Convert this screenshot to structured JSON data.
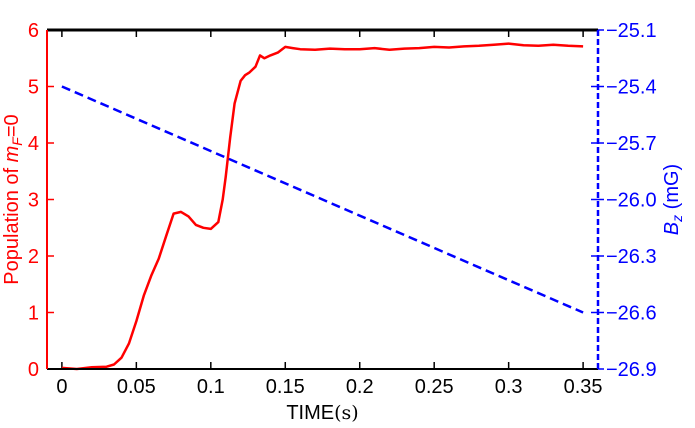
{
  "chart_data": {
    "type": "line",
    "x_axis": {
      "label_main": "TIME",
      "label_unit": "(s)",
      "range": [
        -0.01,
        0.36
      ],
      "ticks": [
        0,
        0.05,
        0.1,
        0.15,
        0.2,
        0.25,
        0.3,
        0.35
      ],
      "tick_labels": [
        "0",
        "0.05",
        "0.1",
        "0.15",
        "0.2",
        "0.25",
        "0.3",
        "0.35"
      ]
    },
    "y_left": {
      "label_prefix": "Population of ",
      "label_var": "m",
      "label_sub": "F",
      "label_suffix": "=0",
      "range": [
        0,
        6
      ],
      "ticks": [
        0,
        1,
        2,
        3,
        4,
        5,
        6
      ],
      "tick_labels": [
        "0",
        "1",
        "2",
        "3",
        "4",
        "5",
        "6"
      ],
      "color": "#ff0000"
    },
    "y_right": {
      "label_var": "B",
      "label_sub": "z",
      "label_unit": " (mG)",
      "range": [
        -26.9,
        -25.1
      ],
      "ticks": [
        -25.1,
        -25.4,
        -25.7,
        -26.0,
        -26.3,
        -26.6,
        -26.9
      ],
      "tick_labels": [
        "−25.1",
        "−25.4",
        "−25.7",
        "−26.0",
        "−26.3",
        "−26.6",
        "−26.9"
      ],
      "color": "#0000ff"
    },
    "series": [
      {
        "axis": "left",
        "style": "solid",
        "color": "#ff0000",
        "x": [
          0,
          0.01,
          0.02,
          0.03,
          0.035,
          0.04,
          0.045,
          0.05,
          0.055,
          0.06,
          0.065,
          0.07,
          0.075,
          0.08,
          0.085,
          0.09,
          0.095,
          0.1,
          0.105,
          0.108,
          0.11,
          0.113,
          0.116,
          0.12,
          0.123,
          0.126,
          0.13,
          0.133,
          0.136,
          0.14,
          0.145,
          0.15,
          0.155,
          0.16,
          0.17,
          0.18,
          0.19,
          0.2,
          0.21,
          0.22,
          0.23,
          0.24,
          0.25,
          0.26,
          0.27,
          0.28,
          0.29,
          0.3,
          0.31,
          0.32,
          0.33,
          0.34,
          0.35
        ],
        "y": [
          0.02,
          0.0,
          0.03,
          0.04,
          0.08,
          0.2,
          0.45,
          0.85,
          1.3,
          1.65,
          1.95,
          2.35,
          2.75,
          2.78,
          2.7,
          2.55,
          2.5,
          2.48,
          2.6,
          3.0,
          3.4,
          4.1,
          4.7,
          5.1,
          5.2,
          5.25,
          5.35,
          5.55,
          5.5,
          5.55,
          5.6,
          5.7,
          5.68,
          5.66,
          5.65,
          5.67,
          5.66,
          5.66,
          5.68,
          5.65,
          5.67,
          5.68,
          5.7,
          5.69,
          5.71,
          5.72,
          5.74,
          5.76,
          5.73,
          5.72,
          5.74,
          5.72,
          5.71
        ]
      },
      {
        "axis": "right",
        "style": "dashed",
        "color": "#0000ff",
        "x": [
          0,
          0.35
        ],
        "y": [
          -25.4,
          -26.6
        ]
      }
    ]
  }
}
